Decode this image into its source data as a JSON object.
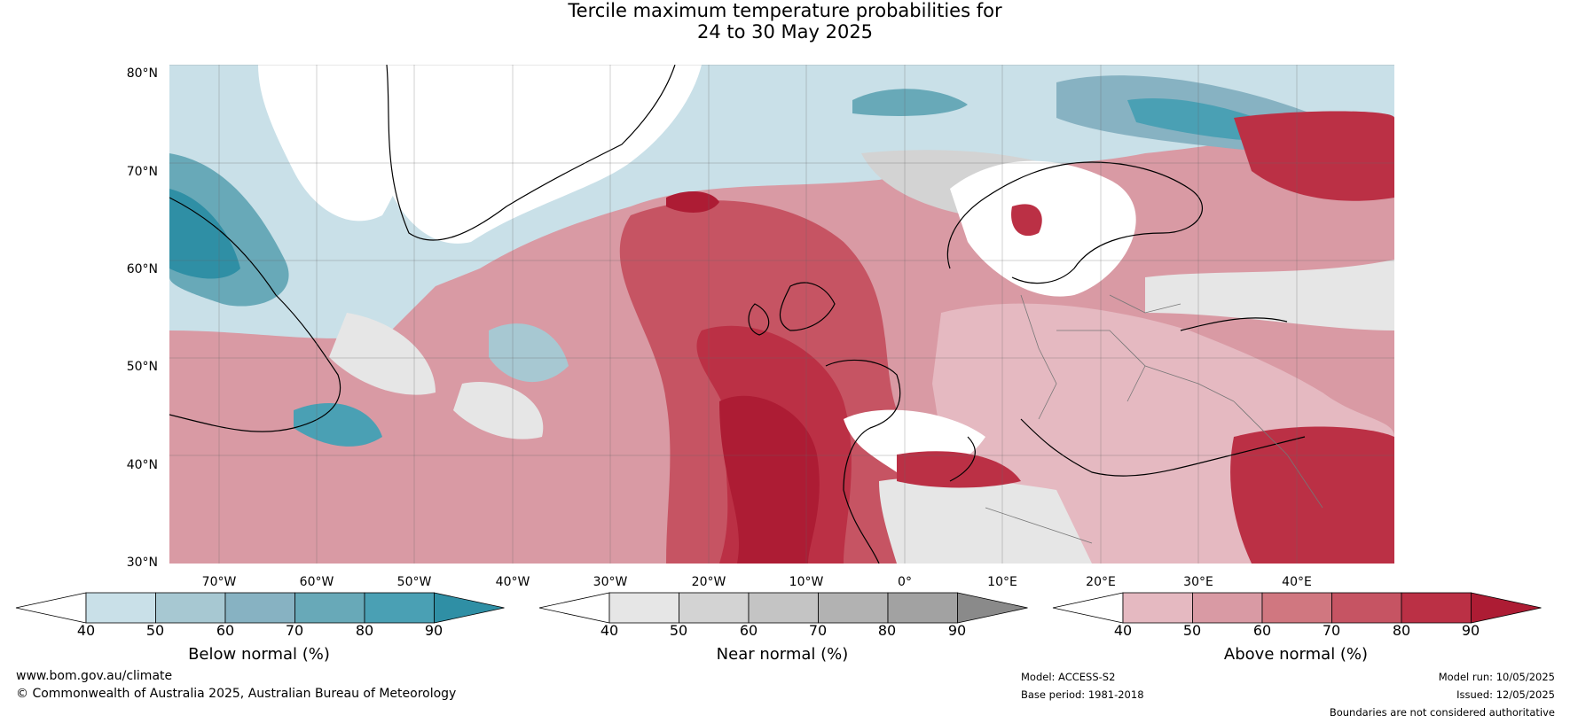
{
  "title_line1": "Tercile maximum temperature probabilities for",
  "title_line2": "24 to 30 May 2025",
  "lat_labels": [
    "80°N",
    "70°N",
    "60°N",
    "50°N",
    "40°N",
    "30°N"
  ],
  "lon_labels": [
    "70°W",
    "60°W",
    "50°W",
    "40°W",
    "30°W",
    "20°W",
    "10°W",
    "0°",
    "10°E",
    "20°E",
    "30°E",
    "40°E"
  ],
  "colorbars": [
    {
      "title": "Below normal (%)",
      "ticks": [
        "40",
        "50",
        "60",
        "70",
        "80",
        "90"
      ],
      "colors": [
        "#ffffff",
        "#c9e0e8",
        "#a7c8d2",
        "#87b2c2",
        "#68a9b8",
        "#4aa0b4",
        "#2f8fa5"
      ]
    },
    {
      "title": "Near normal (%)",
      "ticks": [
        "40",
        "50",
        "60",
        "70",
        "80",
        "90"
      ],
      "colors": [
        "#ffffff",
        "#e6e6e6",
        "#d3d3d3",
        "#c4c4c4",
        "#b2b2b2",
        "#a2a2a2",
        "#8a8a8a"
      ]
    },
    {
      "title": "Above normal (%)",
      "ticks": [
        "40",
        "50",
        "60",
        "70",
        "80",
        "90"
      ],
      "colors": [
        "#ffffff",
        "#e5b9c1",
        "#d99aa4",
        "#d07780",
        "#c65463",
        "#bb3045",
        "#ad1c34"
      ]
    }
  ],
  "footer": {
    "website": "www.bom.gov.au/climate",
    "copyright": "© Commonwealth of Australia 2025, Australian Bureau of Meteorology",
    "model": "Model: ACCESS-S2",
    "base_period": "Base period: 1981-2018",
    "model_run": "Model run: 10/05/2025",
    "issued": "Issued: 12/05/2025",
    "disclaimer": "Boundaries are not considered authoritative"
  }
}
